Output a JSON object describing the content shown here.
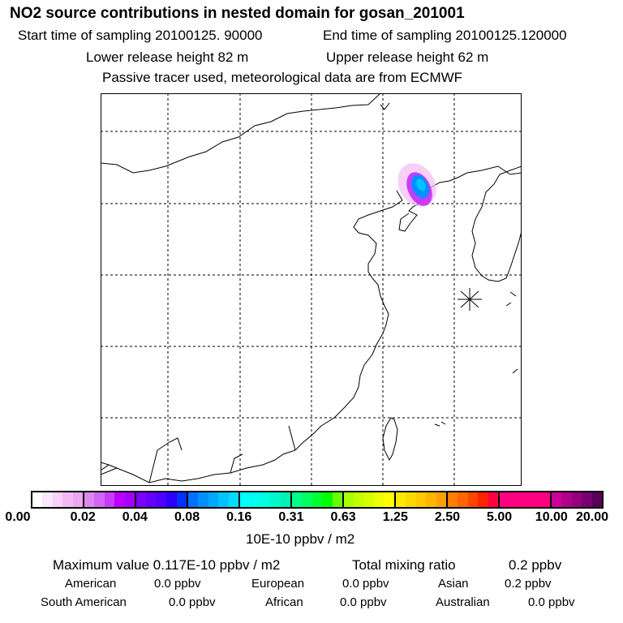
{
  "title": "NO2 source contributions in nested domain for gosan_201001",
  "start_label": "Start time of sampling 20100125. 90000",
  "end_label": "End time of sampling 20100125.120000",
  "lower_label": "Lower release height   82 m",
  "upper_label": "Upper release height   62 m",
  "tracer_label": "Passive tracer used, meteorological data are from ECMWF",
  "colorbar": {
    "ticks": [
      "0.00",
      "0.02",
      "0.04",
      "0.08",
      "0.16",
      "0.31",
      "0.63",
      "1.25",
      "2.50",
      "5.00",
      "10.00",
      "20.00"
    ],
    "unit": "10E-10 ppbv / m2",
    "colors": [
      [
        "#ffffff",
        "#fbe6fb",
        "#f8d0f8",
        "#f3baf3",
        "#eea6f0"
      ],
      [
        "#dd88f0",
        "#d066f4",
        "#c83cf8",
        "#bb00ff",
        "#a600ff"
      ],
      [
        "#7a00ff",
        "#6600ff",
        "#4f00ff",
        "#2a00ff",
        "#0030ff"
      ],
      [
        "#0070ff",
        "#0090ff",
        "#00a8ff",
        "#00c4ff",
        "#00dcff"
      ],
      [
        "#00ffff",
        "#00ffee",
        "#00ffdd",
        "#00f8cc",
        "#00f0b8"
      ],
      [
        "#00ff88",
        "#00ff60",
        "#00ff30",
        "#00ff00",
        "#66ff00"
      ],
      [
        "#aaff00",
        "#c4ff00",
        "#d8ff00",
        "#ecff00",
        "#ffff00"
      ],
      [
        "#ffe800",
        "#ffd800",
        "#ffc800",
        "#ffb400",
        "#ffa000"
      ],
      [
        "#ff8000",
        "#ff6600",
        "#ff4400",
        "#ff2200",
        "#ff0040"
      ],
      [
        "#ff0080",
        "#ff0080",
        "#ff0080",
        "#ff0080",
        "#ff0080"
      ],
      [
        "#cc0099",
        "#b0008a",
        "#940080",
        "#780070",
        "#580058"
      ]
    ]
  },
  "summary": {
    "max_label": "Maximum value  0.117E-10 ppbv / m2",
    "total_label": "Total mixing ratio",
    "total_value": "0.2 ppbv"
  },
  "regions": [
    {
      "name": "American",
      "value": "0.0 ppbv"
    },
    {
      "name": "European",
      "value": "0.0 ppbv"
    },
    {
      "name": "Asian",
      "value": "0.2 ppbv"
    },
    {
      "name": "South American",
      "value": "0.0 ppbv"
    },
    {
      "name": "African",
      "value": "0.0 ppbv"
    },
    {
      "name": "Australian",
      "value": "0.0 ppbv"
    }
  ]
}
